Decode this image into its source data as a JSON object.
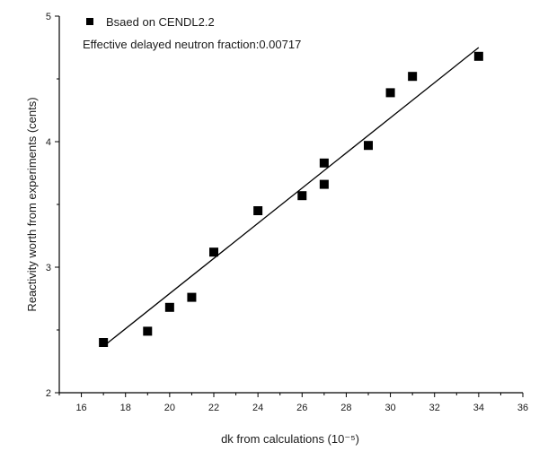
{
  "chart_data": {
    "type": "scatter",
    "title": "",
    "xlabel": "dk from calculations (10⁻⁵)",
    "ylabel": "Reactivity worth from experiments (cents)",
    "xlim": [
      15,
      36
    ],
    "ylim": [
      2,
      5
    ],
    "xticks": [
      16,
      18,
      20,
      22,
      24,
      26,
      28,
      30,
      32,
      34,
      36
    ],
    "yticks": [
      2,
      3,
      4,
      5
    ],
    "grid": false,
    "legend_position": "top-left",
    "annotation": "Effective delayed neutron fraction:0.00717",
    "series": [
      {
        "name": "Bsaed on CENDL2.2",
        "marker": "square",
        "color": "#000000",
        "x": [
          17,
          19,
          20,
          21,
          22,
          24,
          26,
          27,
          27,
          29,
          30,
          31,
          34
        ],
        "y": [
          2.4,
          2.49,
          2.68,
          2.76,
          3.12,
          3.45,
          3.57,
          3.66,
          3.83,
          3.97,
          4.39,
          4.52,
          4.68
        ]
      }
    ],
    "fit_line": {
      "x": [
        17,
        34
      ],
      "y": [
        2.37,
        4.75
      ],
      "color": "#000000"
    }
  }
}
